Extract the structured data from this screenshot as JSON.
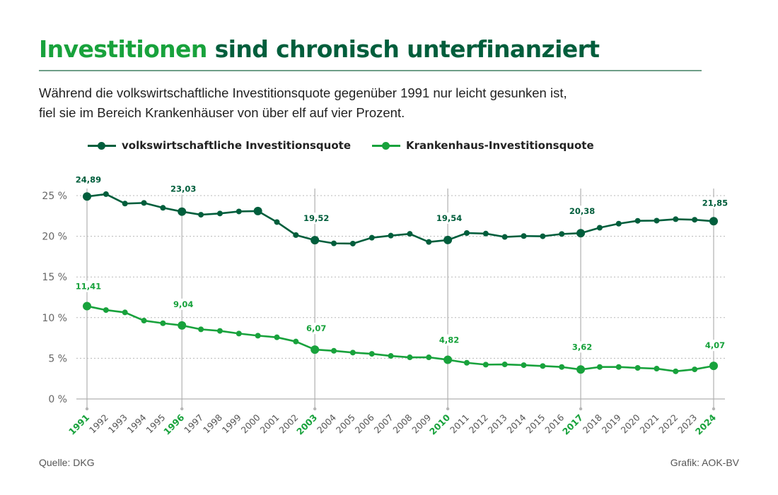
{
  "header": {
    "title_accent": "Investitionen",
    "title_rest": " sind chronisch unterfinanziert",
    "subtitle_line1": "Während die volkswirtschaftliche Investitionsquote gegenüber 1991 nur leicht gesunken ist,",
    "subtitle_line2": "fiel sie im Bereich Krankenhäuser von über elf auf vier Prozent."
  },
  "footer": {
    "source": "Quelle: DKG",
    "credit": "Grafik: AOK-BV"
  },
  "colors": {
    "accent_light": "#18a23c",
    "accent_dark": "#005e3c",
    "divider": "#6e9e88",
    "grid": "#b8b8b8",
    "axis": "#b0b0b0"
  },
  "chart_data": {
    "type": "line",
    "title": "Investitionen sind chronisch unterfinanziert",
    "xlabel": "",
    "ylabel": "",
    "ylim": [
      0,
      25
    ],
    "yticks": [
      0,
      5,
      10,
      15,
      20,
      25
    ],
    "ytick_labels": [
      "0 %",
      "5 %",
      "10 %",
      "15 %",
      "20 %",
      "25 %"
    ],
    "grid": true,
    "legend_position": "top-left",
    "x": [
      "1991",
      "1992",
      "1993",
      "1994",
      "1995",
      "1996",
      "1997",
      "1998",
      "1999",
      "2000",
      "2001",
      "2002",
      "2003",
      "2004",
      "2005",
      "2006",
      "2007",
      "2008",
      "2009",
      "2010",
      "2011",
      "2012",
      "2013",
      "2014",
      "2015",
      "2016",
      "2017",
      "2018",
      "2019",
      "2020",
      "2021",
      "2022",
      "2023",
      "2024"
    ],
    "highlight_years": [
      "1991",
      "1996",
      "2003",
      "2010",
      "2017",
      "2024"
    ],
    "series": [
      {
        "name": "volkswirtschaftliche Investitionsquote",
        "color": "#005e3c",
        "values": [
          24.89,
          25.18,
          24.02,
          24.1,
          23.5,
          23.03,
          22.65,
          22.8,
          23.05,
          23.1,
          21.75,
          20.15,
          19.52,
          19.13,
          19.1,
          19.82,
          20.08,
          20.3,
          19.3,
          19.54,
          20.4,
          20.33,
          19.92,
          20.03,
          20.0,
          20.28,
          20.38,
          21.05,
          21.55,
          21.9,
          21.92,
          22.1,
          22.03,
          21.85
        ],
        "labels": {
          "1991": "24,89",
          "1996": "23,03",
          "2003": "19,52",
          "2010": "19,54",
          "2017": "20,38",
          "2024": "21,85"
        },
        "large_markers": [
          "1991",
          "1996",
          "2000",
          "2003",
          "2010",
          "2017",
          "2024"
        ]
      },
      {
        "name": "Krankenhaus-Investitionsquote",
        "color": "#18a23c",
        "values": [
          11.41,
          10.93,
          10.64,
          9.63,
          9.31,
          9.04,
          8.56,
          8.37,
          8.04,
          7.78,
          7.58,
          7.06,
          6.07,
          5.92,
          5.7,
          5.55,
          5.29,
          5.12,
          5.12,
          4.82,
          4.45,
          4.22,
          4.25,
          4.16,
          4.05,
          3.93,
          3.62,
          3.93,
          3.93,
          3.82,
          3.73,
          3.4,
          3.64,
          4.07
        ],
        "labels": {
          "1991": "11,41",
          "1996": "9,04",
          "2003": "6,07",
          "2010": "4,82",
          "2017": "3,62",
          "2024": "4,07"
        },
        "large_markers": [
          "1991",
          "1996",
          "2003",
          "2010",
          "2017",
          "2024"
        ]
      }
    ]
  }
}
